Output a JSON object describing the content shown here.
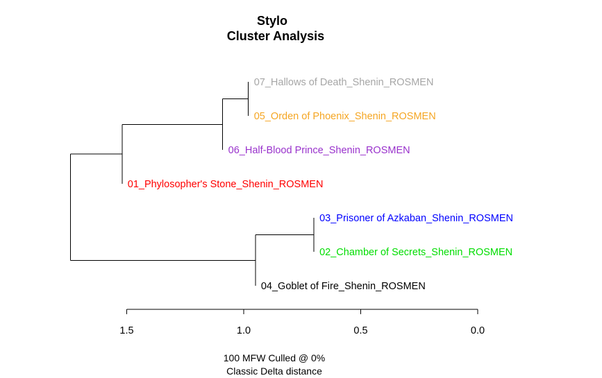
{
  "chart_data": {
    "type": "dendrogram",
    "title": "Stylo",
    "subtitle": "Cluster Analysis",
    "xlabel_lines": [
      "100 MFW  Culled @ 0%",
      "Classic Delta distance"
    ],
    "xlim": [
      1.5,
      0.0
    ],
    "ticks": [
      {
        "value": 1.5,
        "label": "1.5"
      },
      {
        "value": 1.0,
        "label": "1.0"
      },
      {
        "value": 0.5,
        "label": "0.5"
      },
      {
        "value": 0.0,
        "label": "0.0"
      }
    ],
    "leaves": [
      {
        "id": "L7",
        "label": "07_Hallows of Death_Shenin_ROSMEN",
        "color": "#a6a6a6"
      },
      {
        "id": "L5",
        "label": "05_Orden of Phoenix_Shenin_ROSMEN",
        "color": "#f5a623"
      },
      {
        "id": "L6",
        "label": "06_Half-Blood Prince_Shenin_ROSMEN",
        "color": "#9932cc"
      },
      {
        "id": "L1",
        "label": "01_Phylosopher's Stone_Shenin_ROSMEN",
        "color": "#ff0000"
      },
      {
        "id": "L3",
        "label": "03_Prisoner of Azkaban_Shenin_ROSMEN",
        "color": "#0000ff"
      },
      {
        "id": "L2",
        "label": "02_Chamber of Secrets_Shenin_ROSMEN",
        "color": "#00dd00"
      },
      {
        "id": "L4",
        "label": "04_Goblet of Fire_Shenin_ROSMEN",
        "color": "#000000"
      }
    ],
    "merges": [
      {
        "id": "M1",
        "children": [
          "L7",
          "L5"
        ],
        "height": 0.98
      },
      {
        "id": "M2",
        "children": [
          "M1",
          "L6"
        ],
        "height": 1.09
      },
      {
        "id": "M3",
        "children": [
          "M2",
          "L1"
        ],
        "height": 1.52
      },
      {
        "id": "M4",
        "children": [
          "L3",
          "L2"
        ],
        "height": 0.7
      },
      {
        "id": "M5",
        "children": [
          "M4",
          "L4"
        ],
        "height": 0.95
      },
      {
        "id": "M6",
        "children": [
          "M3",
          "M5"
        ],
        "height": 1.74
      }
    ]
  }
}
